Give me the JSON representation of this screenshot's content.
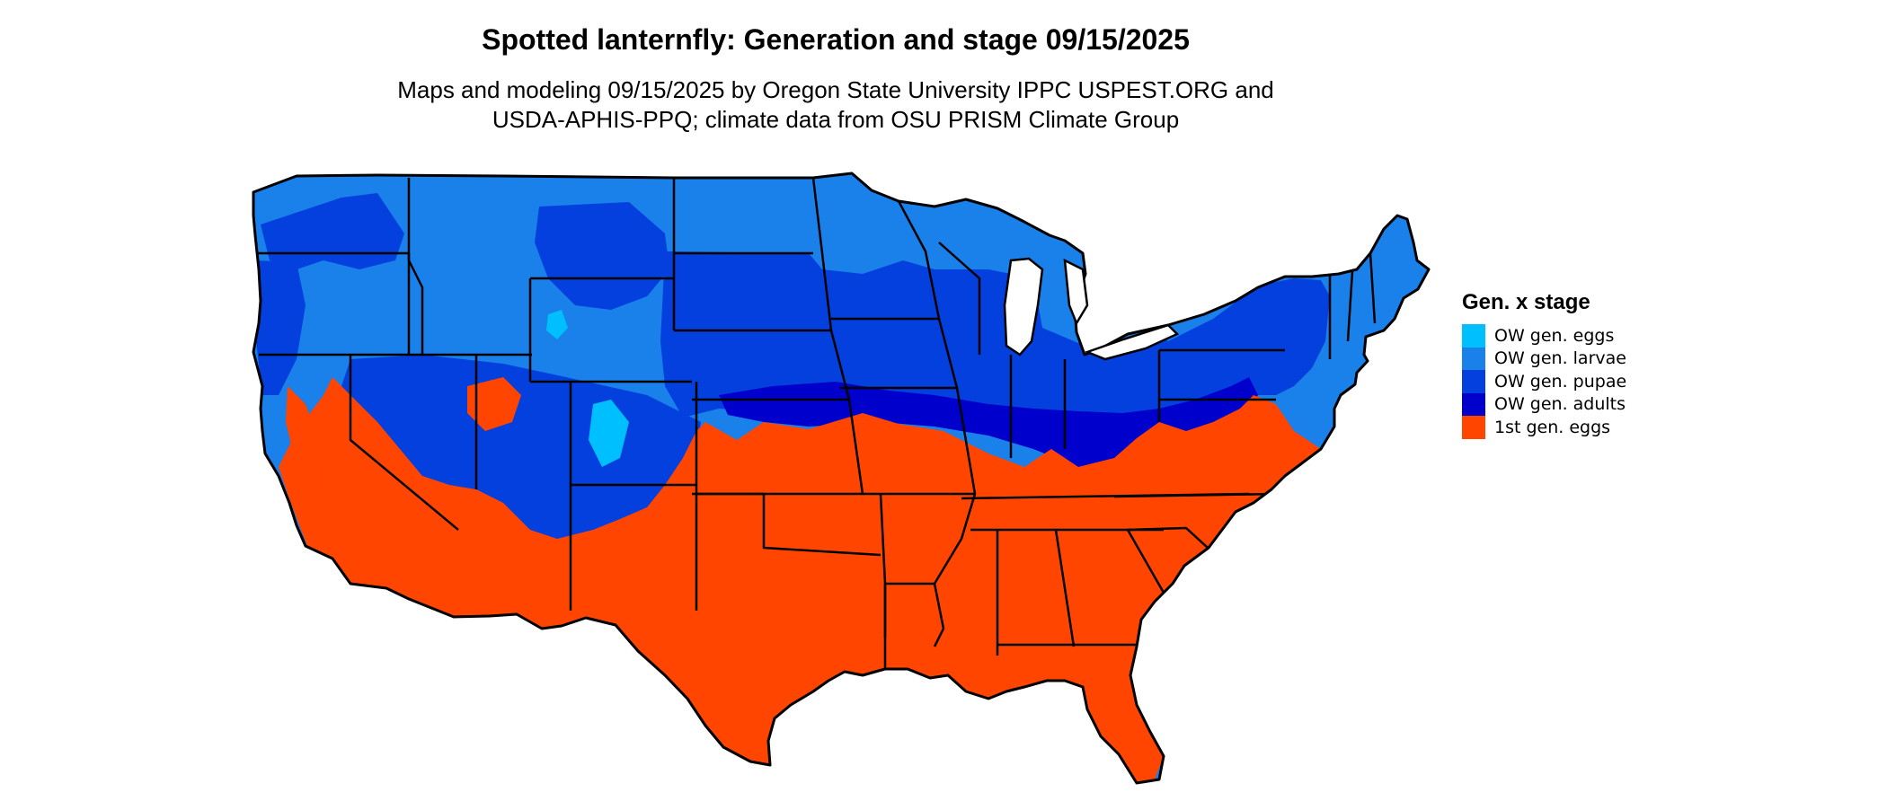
{
  "title": "Spotted lanternfly: Generation and stage 09/15/2025",
  "subtitle_line1": "Maps and modeling 09/15/2025 by Oregon State University IPPC USPEST.ORG and",
  "subtitle_line2": "USDA-APHIS-PPQ; climate data from OSU PRISM Climate Group",
  "legend": {
    "title": "Gen. x stage",
    "items": [
      {
        "label": "OW gen. eggs",
        "color": "#00bfff"
      },
      {
        "label": "OW gen. larvae",
        "color": "#1a80ea"
      },
      {
        "label": "OW gen. pupae",
        "color": "#0440de"
      },
      {
        "label": "OW gen. adults",
        "color": "#0000cc"
      },
      {
        "label": "1st gen. eggs",
        "color": "#ff4500"
      }
    ]
  },
  "colors": {
    "ow_larvae": "#1a80ea",
    "ow_pupae": "#0440de",
    "ow_adults": "#0000cc",
    "first_gen_eggs": "#ff4500",
    "ow_eggs": "#00bfff",
    "state_border": "#000000"
  }
}
